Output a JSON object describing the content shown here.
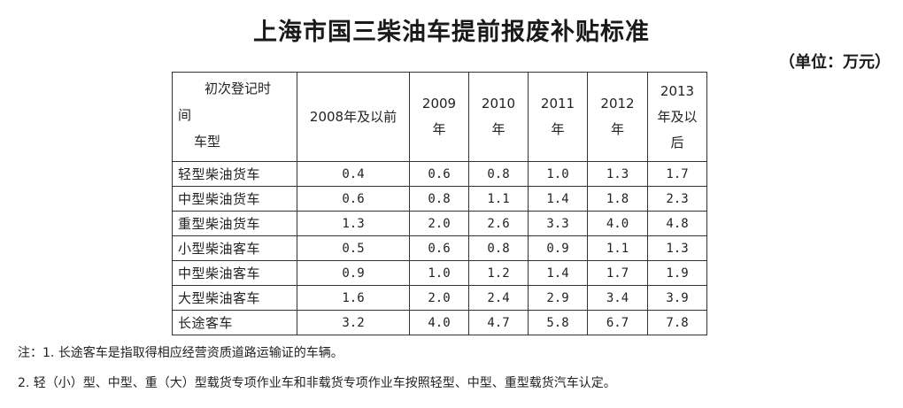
{
  "title": "上海市国三柴油车提前报废补贴标准",
  "unit": "（单位：万元）",
  "table": {
    "corner": {
      "line1": "初次登记时",
      "line2": "间",
      "line3": "车型"
    },
    "columns": [
      "2008年及以前",
      "2009年",
      "2010年",
      "2011年",
      "2012年",
      "2013年及以后"
    ],
    "rows": [
      {
        "name": "轻型柴油货车",
        "values": [
          "0.4",
          "0.6",
          "0.8",
          "1.0",
          "1.3",
          "1.7"
        ]
      },
      {
        "name": "中型柴油货车",
        "values": [
          "0.6",
          "0.8",
          "1.1",
          "1.4",
          "1.8",
          "2.3"
        ]
      },
      {
        "name": "重型柴油货车",
        "values": [
          "1.3",
          "2.0",
          "2.6",
          "3.3",
          "4.0",
          "4.8"
        ]
      },
      {
        "name": "小型柴油客车",
        "values": [
          "0.5",
          "0.6",
          "0.8",
          "0.9",
          "1.1",
          "1.3"
        ]
      },
      {
        "name": "中型柴油客车",
        "values": [
          "0.9",
          "1.0",
          "1.2",
          "1.4",
          "1.7",
          "1.9"
        ]
      },
      {
        "name": "大型柴油客车",
        "values": [
          "1.6",
          "2.0",
          "2.4",
          "2.9",
          "3.4",
          "3.9"
        ]
      },
      {
        "name": "长途客车",
        "values": [
          "3.2",
          "4.0",
          "4.7",
          "5.8",
          "6.7",
          "7.8"
        ]
      }
    ]
  },
  "notes": [
    "注：1. 长途客车是指取得相应经营资质道路运输证的车辆。",
    "2. 轻（小）型、中型、重（大）型载货专项作业车和非载货专项作业车按照轻型、中型、重型载货汽车认定。"
  ]
}
